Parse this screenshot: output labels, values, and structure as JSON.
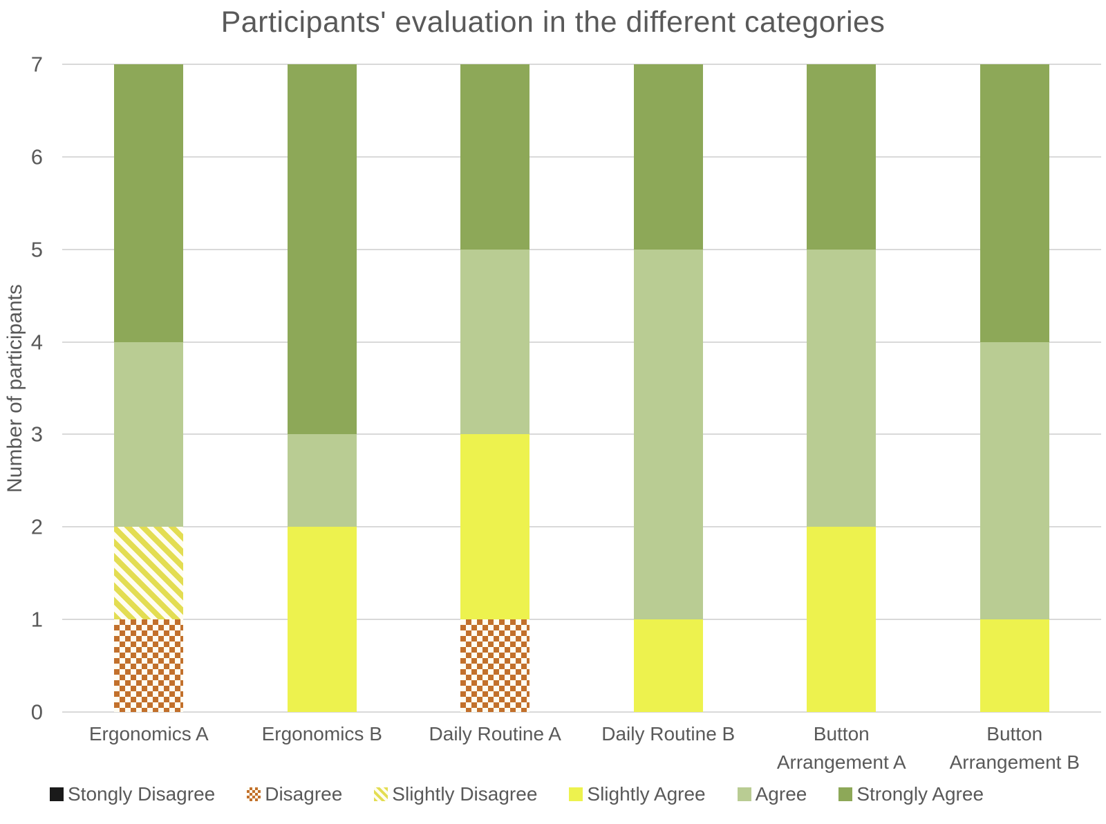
{
  "title": "Participants' evaluation in the different categories",
  "y_axis": {
    "label": "Number of participants",
    "ticks": [
      "7",
      "6",
      "5",
      "4",
      "3",
      "2",
      "1",
      "0"
    ],
    "min": 0,
    "max": 7
  },
  "colors": {
    "text": "#595959",
    "gridline": "#d9d9d9",
    "stongly_disagree": "#1a1a1a",
    "disagree": "#c2702b",
    "slightly_disagree": "#e3dd52",
    "slightly_agree": "#edf24e",
    "agree": "#b9cc93",
    "strongly_agree": "#8da858",
    "pattern_background": "#fffdf2"
  },
  "chart_data": {
    "type": "bar",
    "stacked": true,
    "title": "Participants' evaluation in the different categories",
    "xlabel": "",
    "ylabel": "Number of participants",
    "ylim": [
      0,
      7
    ],
    "grid": true,
    "legend_position": "bottom",
    "categories": [
      "Ergonomics A",
      "Ergonomics B",
      "Daily Routine A",
      "Daily Routine B",
      "Button Arrangement A",
      "Button Arrangement B"
    ],
    "series": [
      {
        "name": "Stongly Disagree",
        "key": "stongly_disagree",
        "style": "solid",
        "color": "#1a1a1a",
        "values": [
          0,
          0,
          0,
          0,
          0,
          0
        ]
      },
      {
        "name": "Disagree",
        "key": "disagree",
        "style": "checker",
        "color": "#c2702b",
        "values": [
          1,
          0,
          1,
          0,
          0,
          0
        ]
      },
      {
        "name": "Slightly Disagree",
        "key": "slightly_disagree",
        "style": "stripe",
        "color": "#e3dd52",
        "values": [
          1,
          0,
          0,
          0,
          0,
          0
        ]
      },
      {
        "name": "Slightly Agree",
        "key": "slightly_agree",
        "style": "solid",
        "color": "#edf24e",
        "values": [
          0,
          2,
          2,
          1,
          2,
          1
        ]
      },
      {
        "name": "Agree",
        "key": "agree",
        "style": "solid",
        "color": "#b9cc93",
        "values": [
          2,
          1,
          2,
          4,
          3,
          3
        ]
      },
      {
        "name": "Strongly Agree",
        "key": "strongly_agree",
        "style": "solid",
        "color": "#8da858",
        "values": [
          3,
          4,
          2,
          2,
          2,
          3
        ]
      }
    ]
  }
}
